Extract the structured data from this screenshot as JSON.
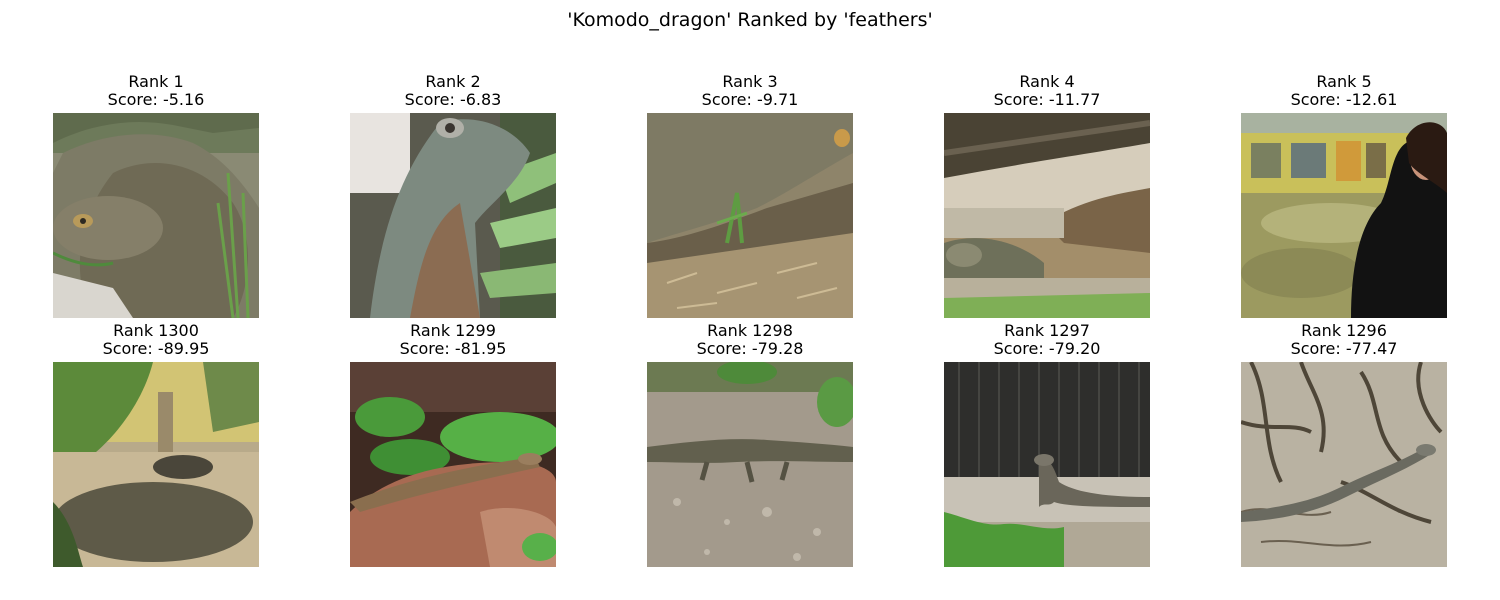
{
  "figure": {
    "title": "'Komodo_dragon' Ranked by 'feathers'"
  },
  "top_row": [
    {
      "rank_label": "Rank 1",
      "score_label": "Score: -5.16",
      "image": "komodo-dragon-closeup-photo"
    },
    {
      "rank_label": "Rank 2",
      "score_label": "Score: -6.83",
      "image": "komodo-dragon-head-photo"
    },
    {
      "rank_label": "Rank 3",
      "score_label": "Score: -9.71",
      "image": "komodo-dragon-body-photo"
    },
    {
      "rank_label": "Rank 4",
      "score_label": "Score: -11.77",
      "image": "komodo-dragon-under-log-photo"
    },
    {
      "rank_label": "Rank 5",
      "score_label": "Score: -12.61",
      "image": "woman-at-zoo-enclosure-photo"
    }
  ],
  "bottom_row": [
    {
      "rank_label": "Rank 1300",
      "score_label": "Score: -89.95",
      "image": "komodo-dragon-shaded-enclosure-photo"
    },
    {
      "rank_label": "Rank 1299",
      "score_label": "Score: -81.95",
      "image": "komodo-dragon-on-rock-photo"
    },
    {
      "rank_label": "Rank 1298",
      "score_label": "Score: -79.28",
      "image": "komodo-dragon-walking-photo"
    },
    {
      "rank_label": "Rank 1297",
      "score_label": "Score: -79.20",
      "image": "komodo-dragon-by-fence-photo"
    },
    {
      "rank_label": "Rank 1296",
      "score_label": "Score: -77.47",
      "image": "komodo-dragon-among-roots-photo"
    }
  ]
}
